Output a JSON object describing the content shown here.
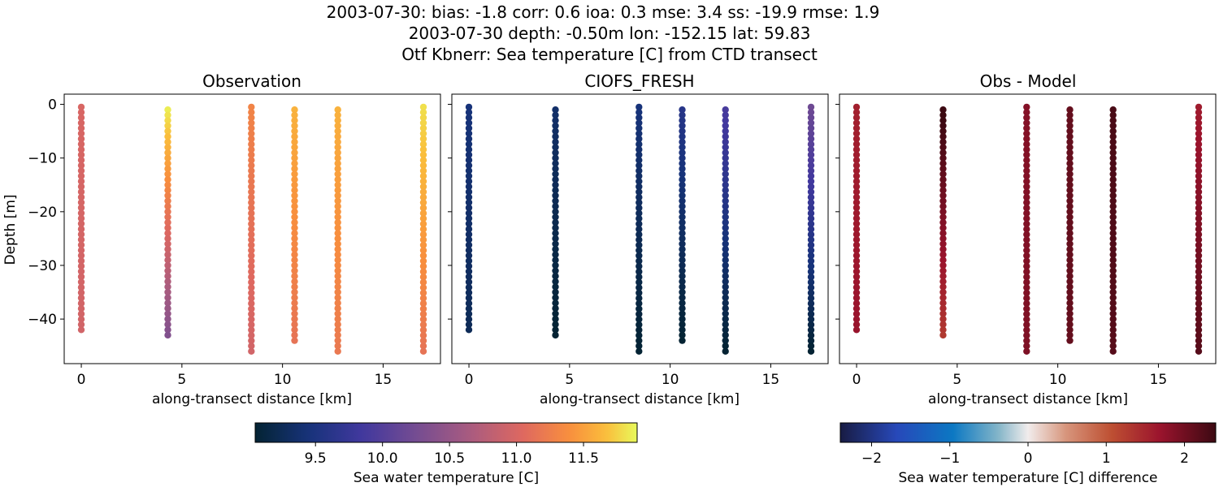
{
  "figure": {
    "title_lines": [
      "2003-07-30: bias: -1.8  corr: 0.6  ioa: 0.3  mse: 3.4  ss: -19.9  rmse: 1.9",
      "2003-07-30 depth: -0.50m lon: -152.15 lat: 59.83",
      "Otf Kbnerr: Sea temperature [C] from CTD transect"
    ]
  },
  "chart_data": [
    {
      "type": "scatter",
      "title": "Observation",
      "xlabel": "along-transect distance [km]",
      "ylabel": "Depth [m]",
      "xlim": [
        -0.85,
        17.85
      ],
      "ylim": [
        -48.3,
        1.9
      ],
      "xticks": [
        0,
        5,
        10,
        15
      ],
      "yticks": [
        0,
        -10,
        -20,
        -30,
        -40
      ],
      "colormap": "thermal",
      "clim": [
        9.05,
        11.9
      ],
      "casts": [
        {
          "x": 0.0,
          "top": -0.5,
          "bottom": -42,
          "v_top": 11.0,
          "v_bottom": 10.95
        },
        {
          "x": 4.3,
          "top": -1.0,
          "bottom": -43,
          "v_top": 11.85,
          "v_bottom": 10.35
        },
        {
          "x": 8.45,
          "top": -0.5,
          "bottom": -46,
          "v_top": 11.3,
          "v_bottom": 10.95
        },
        {
          "x": 10.6,
          "top": -1.0,
          "bottom": -44,
          "v_top": 11.6,
          "v_bottom": 11.15
        },
        {
          "x": 12.75,
          "top": -1.0,
          "bottom": -46,
          "v_top": 11.6,
          "v_bottom": 11.2
        },
        {
          "x": 17.0,
          "top": -0.5,
          "bottom": -46,
          "v_top": 11.8,
          "v_bottom": 11.15
        }
      ]
    },
    {
      "type": "scatter",
      "title": "CIOFS_FRESH",
      "xlabel": "along-transect distance [km]",
      "ylabel": "",
      "xlim": [
        -0.85,
        17.85
      ],
      "ylim": [
        -48.3,
        1.9
      ],
      "xticks": [
        0,
        5,
        10,
        15
      ],
      "yticks": [
        0,
        -10,
        -20,
        -30,
        -40
      ],
      "colormap": "thermal",
      "clim": [
        9.05,
        11.9
      ],
      "casts": [
        {
          "x": 0.0,
          "top": -0.5,
          "bottom": -42,
          "v_top": 9.45,
          "v_bottom": 9.25
        },
        {
          "x": 4.3,
          "top": -1.0,
          "bottom": -43,
          "v_top": 9.35,
          "v_bottom": 9.05
        },
        {
          "x": 8.45,
          "top": -0.5,
          "bottom": -46,
          "v_top": 9.45,
          "v_bottom": 9.05
        },
        {
          "x": 10.6,
          "top": -1.0,
          "bottom": -44,
          "v_top": 9.6,
          "v_bottom": 9.05
        },
        {
          "x": 12.75,
          "top": -1.0,
          "bottom": -46,
          "v_top": 9.9,
          "v_bottom": 9.05
        },
        {
          "x": 17.0,
          "top": -0.5,
          "bottom": -46,
          "v_top": 10.2,
          "v_bottom": 9.05
        }
      ]
    },
    {
      "type": "scatter",
      "title": "Obs - Model",
      "xlabel": "along-transect distance [km]",
      "ylabel": "",
      "xlim": [
        -0.85,
        17.85
      ],
      "ylim": [
        -48.3,
        1.9
      ],
      "xticks": [
        0,
        5,
        10,
        15
      ],
      "yticks": [
        0,
        -10,
        -20,
        -30,
        -40
      ],
      "colormap": "balance",
      "clim": [
        -2.4,
        2.4
      ],
      "casts": [
        {
          "x": 0.0,
          "top": -0.5,
          "bottom": -42,
          "v_top": 1.55,
          "v_bottom": 1.7
        },
        {
          "x": 4.3,
          "top": -1.0,
          "bottom": -43,
          "v_top": 2.45,
          "v_bottom": 1.3
        },
        {
          "x": 8.45,
          "top": -0.5,
          "bottom": -46,
          "v_top": 1.85,
          "v_bottom": 1.9
        },
        {
          "x": 10.6,
          "top": -1.0,
          "bottom": -44,
          "v_top": 2.1,
          "v_bottom": 2.1
        },
        {
          "x": 12.75,
          "top": -1.0,
          "bottom": -46,
          "v_top": 2.3,
          "v_bottom": 2.2
        },
        {
          "x": 17.0,
          "top": -0.5,
          "bottom": -46,
          "v_top": 1.6,
          "v_bottom": 2.2
        }
      ]
    }
  ],
  "colorbars": [
    {
      "label": "Sea water temperature [C]",
      "colormap": "thermal",
      "range": [
        9.05,
        11.9
      ],
      "ticks": [
        9.5,
        10.0,
        10.5,
        11.0,
        11.5
      ],
      "tick_labels": [
        "9.5",
        "10.0",
        "10.5",
        "11.0",
        "11.5"
      ]
    },
    {
      "label": "Sea water temperature [C] difference",
      "colormap": "balance",
      "range": [
        -2.4,
        2.4
      ],
      "ticks": [
        -2,
        -1,
        0,
        1,
        2
      ],
      "tick_labels": [
        "−2",
        "−1",
        "0",
        "1",
        "2"
      ]
    }
  ]
}
